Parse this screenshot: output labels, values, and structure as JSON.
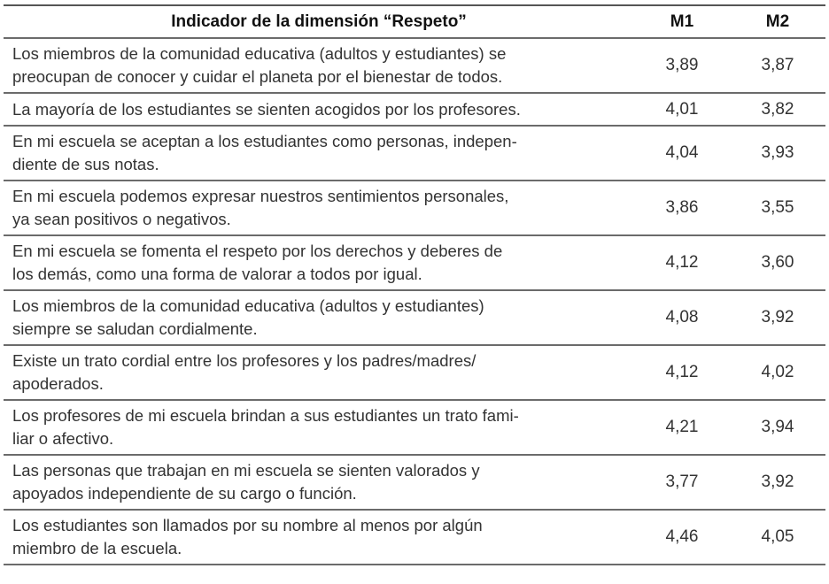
{
  "table": {
    "headers": {
      "indicator": "Indicador de la dimensión “Respeto”",
      "m1": "M1",
      "m2": "M2"
    },
    "rows": [
      {
        "lines": [
          "Los miembros de la comunidad educativa (adultos y estudiantes) se",
          "preocupan de conocer y cuidar el planeta por el bienestar de todos."
        ],
        "m1": "3,89",
        "m2": "3,87"
      },
      {
        "lines": [
          "La mayoría de los estudiantes se sienten acogidos por los profesores."
        ],
        "m1": "4,01",
        "m2": "3,82"
      },
      {
        "lines": [
          "En mi escuela se aceptan a los estudiantes como personas, indepen-",
          "diente de sus notas."
        ],
        "m1": "4,04",
        "m2": "3,93"
      },
      {
        "lines": [
          "En mi escuela podemos expresar nuestros sentimientos personales,",
          "ya sean positivos o negativos."
        ],
        "m1": "3,86",
        "m2": "3,55"
      },
      {
        "lines": [
          "En mi escuela se fomenta el respeto por los derechos y deberes de",
          "los demás, como una forma de valorar a todos por igual."
        ],
        "m1": "4,12",
        "m2": "3,60"
      },
      {
        "lines": [
          "Los miembros de la comunidad educativa (adultos y estudiantes)",
          "siempre se saludan cordialmente."
        ],
        "m1": "4,08",
        "m2": "3,92"
      },
      {
        "lines": [
          "Existe un trato cordial entre los profesores y los padres/madres/",
          "apoderados."
        ],
        "m1": "4,12",
        "m2": "4,02"
      },
      {
        "lines": [
          "Los profesores de mi escuela brindan a sus estudiantes un trato fami-",
          "liar o afectivo."
        ],
        "m1": "4,21",
        "m2": "3,94"
      },
      {
        "lines": [
          "Las personas que trabajan en mi escuela se sienten valorados y",
          "apoyados independiente de su cargo o función."
        ],
        "m1": "3,77",
        "m2": "3,92"
      },
      {
        "lines": [
          "Los estudiantes son llamados por su nombre al menos por algún",
          "miembro de la escuela."
        ],
        "m1": "4,46",
        "m2": "4,05"
      }
    ]
  }
}
